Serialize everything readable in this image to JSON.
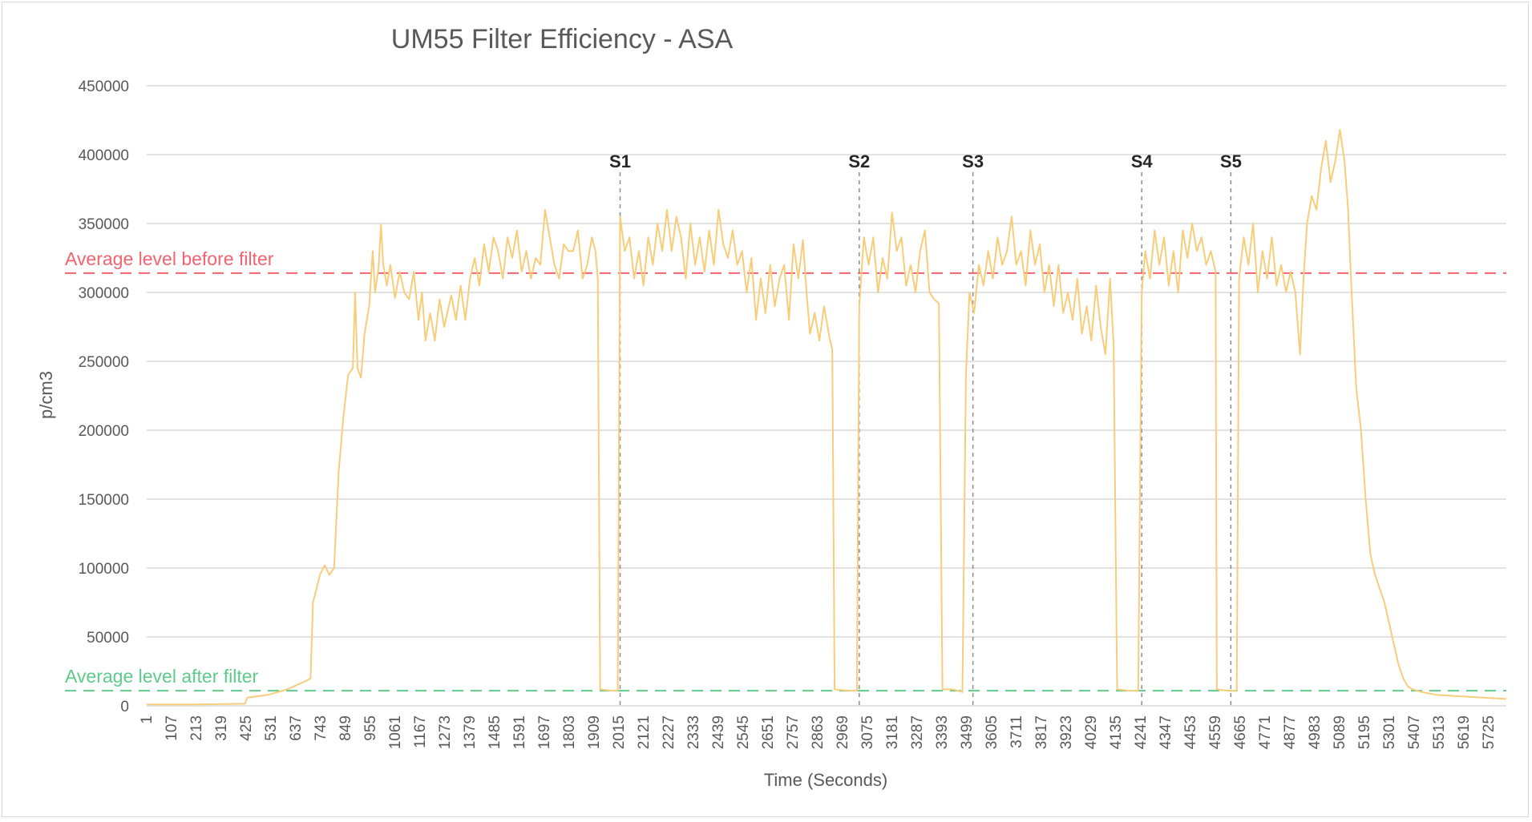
{
  "chart_data": {
    "type": "line",
    "title": "UM55 Filter Efficiency - ASA",
    "xlabel": "Time (Seconds)",
    "ylabel": "p/cm3",
    "ylim": [
      0,
      450000
    ],
    "xlim": [
      1,
      5800
    ],
    "grid": true,
    "y_ticks": [
      0,
      50000,
      100000,
      150000,
      200000,
      250000,
      300000,
      350000,
      400000,
      450000
    ],
    "y_tick_labels": [
      "0",
      "50000",
      "100000",
      "150000",
      "200000",
      "250000",
      "300000",
      "350000",
      "400000",
      "450000"
    ],
    "x_ticks": [
      1,
      107,
      213,
      319,
      425,
      531,
      637,
      743,
      849,
      955,
      1061,
      1167,
      1273,
      1379,
      1485,
      1591,
      1697,
      1803,
      1909,
      2015,
      2121,
      2227,
      2333,
      2439,
      2545,
      2651,
      2757,
      2863,
      2969,
      3075,
      3181,
      3287,
      3393,
      3499,
      3605,
      3711,
      3817,
      3923,
      4029,
      4135,
      4241,
      4347,
      4453,
      4559,
      4665,
      4771,
      4877,
      4983,
      5089,
      5195,
      5301,
      5407,
      5513,
      5619,
      5725
    ],
    "x_tick_labels": [
      "1",
      "107",
      "213",
      "319",
      "425",
      "531",
      "637",
      "743",
      "849",
      "955",
      "1061",
      "1167",
      "1273",
      "1379",
      "1485",
      "1591",
      "1697",
      "1803",
      "1909",
      "2015",
      "2121",
      "2227",
      "2333",
      "2439",
      "2545",
      "2651",
      "2757",
      "2863",
      "2969",
      "3075",
      "3181",
      "3287",
      "3393",
      "3499",
      "3605",
      "3711",
      "3817",
      "3923",
      "4029",
      "4135",
      "4241",
      "4347",
      "4453",
      "4559",
      "4665",
      "4771",
      "4877",
      "4983",
      "5089",
      "5195",
      "5301",
      "5407",
      "5513",
      "5619",
      "5725"
    ],
    "series": [
      {
        "color": "#f8cd7a",
        "points": [
          [
            1,
            1000
          ],
          [
            200,
            1000
          ],
          [
            420,
            1500
          ],
          [
            430,
            6000
          ],
          [
            520,
            8000
          ],
          [
            600,
            12000
          ],
          [
            680,
            18000
          ],
          [
            700,
            20000
          ],
          [
            710,
            75000
          ],
          [
            740,
            95000
          ],
          [
            760,
            102000
          ],
          [
            780,
            95000
          ],
          [
            800,
            100000
          ],
          [
            820,
            170000
          ],
          [
            840,
            210000
          ],
          [
            860,
            240000
          ],
          [
            880,
            245000
          ],
          [
            890,
            300000
          ],
          [
            900,
            245000
          ],
          [
            915,
            238000
          ],
          [
            930,
            270000
          ],
          [
            950,
            290000
          ],
          [
            965,
            330000
          ],
          [
            975,
            300000
          ],
          [
            990,
            318000
          ],
          [
            1000,
            349000
          ],
          [
            1010,
            320000
          ],
          [
            1025,
            305000
          ],
          [
            1040,
            320000
          ],
          [
            1060,
            296000
          ],
          [
            1080,
            315000
          ],
          [
            1100,
            300000
          ],
          [
            1120,
            295000
          ],
          [
            1140,
            315000
          ],
          [
            1160,
            280000
          ],
          [
            1175,
            300000
          ],
          [
            1190,
            265000
          ],
          [
            1210,
            285000
          ],
          [
            1230,
            265000
          ],
          [
            1250,
            295000
          ],
          [
            1270,
            275000
          ],
          [
            1300,
            298000
          ],
          [
            1320,
            280000
          ],
          [
            1340,
            305000
          ],
          [
            1360,
            280000
          ],
          [
            1380,
            310000
          ],
          [
            1400,
            325000
          ],
          [
            1420,
            305000
          ],
          [
            1440,
            335000
          ],
          [
            1460,
            315000
          ],
          [
            1480,
            340000
          ],
          [
            1500,
            330000
          ],
          [
            1520,
            310000
          ],
          [
            1540,
            340000
          ],
          [
            1560,
            325000
          ],
          [
            1580,
            345000
          ],
          [
            1600,
            315000
          ],
          [
            1620,
            330000
          ],
          [
            1640,
            310000
          ],
          [
            1660,
            325000
          ],
          [
            1680,
            320000
          ],
          [
            1700,
            360000
          ],
          [
            1720,
            340000
          ],
          [
            1740,
            320000
          ],
          [
            1760,
            310000
          ],
          [
            1780,
            335000
          ],
          [
            1800,
            330000
          ],
          [
            1820,
            330000
          ],
          [
            1840,
            345000
          ],
          [
            1860,
            310000
          ],
          [
            1880,
            320000
          ],
          [
            1900,
            340000
          ],
          [
            1915,
            330000
          ],
          [
            1925,
            310000
          ],
          [
            1935,
            12000
          ],
          [
            1980,
            11000
          ],
          [
            2010,
            11000
          ],
          [
            2020,
            355000
          ],
          [
            2040,
            330000
          ],
          [
            2060,
            340000
          ],
          [
            2080,
            310000
          ],
          [
            2100,
            330000
          ],
          [
            2120,
            305000
          ],
          [
            2140,
            340000
          ],
          [
            2160,
            320000
          ],
          [
            2180,
            350000
          ],
          [
            2200,
            330000
          ],
          [
            2220,
            360000
          ],
          [
            2240,
            330000
          ],
          [
            2260,
            355000
          ],
          [
            2280,
            340000
          ],
          [
            2300,
            310000
          ],
          [
            2320,
            350000
          ],
          [
            2340,
            320000
          ],
          [
            2360,
            340000
          ],
          [
            2380,
            315000
          ],
          [
            2400,
            345000
          ],
          [
            2420,
            320000
          ],
          [
            2440,
            360000
          ],
          [
            2460,
            335000
          ],
          [
            2480,
            325000
          ],
          [
            2500,
            345000
          ],
          [
            2520,
            320000
          ],
          [
            2540,
            330000
          ],
          [
            2560,
            300000
          ],
          [
            2580,
            325000
          ],
          [
            2600,
            280000
          ],
          [
            2620,
            310000
          ],
          [
            2640,
            285000
          ],
          [
            2660,
            320000
          ],
          [
            2680,
            290000
          ],
          [
            2700,
            310000
          ],
          [
            2720,
            320000
          ],
          [
            2740,
            280000
          ],
          [
            2760,
            335000
          ],
          [
            2780,
            310000
          ],
          [
            2800,
            338000
          ],
          [
            2815,
            300000
          ],
          [
            2830,
            270000
          ],
          [
            2850,
            285000
          ],
          [
            2870,
            265000
          ],
          [
            2890,
            290000
          ],
          [
            2910,
            270000
          ],
          [
            2925,
            258000
          ],
          [
            2935,
            12000
          ],
          [
            2990,
            11000
          ],
          [
            3030,
            11000
          ],
          [
            3040,
            290000
          ],
          [
            3060,
            340000
          ],
          [
            3080,
            320000
          ],
          [
            3100,
            340000
          ],
          [
            3120,
            300000
          ],
          [
            3140,
            325000
          ],
          [
            3160,
            310000
          ],
          [
            3180,
            358000
          ],
          [
            3200,
            330000
          ],
          [
            3220,
            340000
          ],
          [
            3240,
            305000
          ],
          [
            3260,
            320000
          ],
          [
            3280,
            300000
          ],
          [
            3300,
            330000
          ],
          [
            3320,
            345000
          ],
          [
            3340,
            300000
          ],
          [
            3360,
            295000
          ],
          [
            3380,
            292000
          ],
          [
            3395,
            12000
          ],
          [
            3440,
            12000
          ],
          [
            3480,
            10000
          ],
          [
            3495,
            240000
          ],
          [
            3510,
            300000
          ],
          [
            3530,
            285000
          ],
          [
            3550,
            320000
          ],
          [
            3570,
            305000
          ],
          [
            3590,
            330000
          ],
          [
            3610,
            310000
          ],
          [
            3630,
            340000
          ],
          [
            3650,
            320000
          ],
          [
            3670,
            330000
          ],
          [
            3690,
            355000
          ],
          [
            3710,
            320000
          ],
          [
            3730,
            330000
          ],
          [
            3750,
            305000
          ],
          [
            3770,
            345000
          ],
          [
            3790,
            320000
          ],
          [
            3810,
            335000
          ],
          [
            3830,
            300000
          ],
          [
            3850,
            320000
          ],
          [
            3870,
            290000
          ],
          [
            3890,
            320000
          ],
          [
            3910,
            285000
          ],
          [
            3930,
            300000
          ],
          [
            3950,
            280000
          ],
          [
            3970,
            310000
          ],
          [
            3990,
            270000
          ],
          [
            4010,
            290000
          ],
          [
            4030,
            265000
          ],
          [
            4050,
            305000
          ],
          [
            4070,
            275000
          ],
          [
            4090,
            255000
          ],
          [
            4110,
            310000
          ],
          [
            4125,
            262000
          ],
          [
            4140,
            12000
          ],
          [
            4190,
            11000
          ],
          [
            4230,
            11000
          ],
          [
            4245,
            300000
          ],
          [
            4260,
            330000
          ],
          [
            4280,
            310000
          ],
          [
            4300,
            345000
          ],
          [
            4320,
            320000
          ],
          [
            4340,
            340000
          ],
          [
            4360,
            305000
          ],
          [
            4380,
            330000
          ],
          [
            4400,
            300000
          ],
          [
            4420,
            345000
          ],
          [
            4440,
            325000
          ],
          [
            4460,
            350000
          ],
          [
            4480,
            330000
          ],
          [
            4500,
            340000
          ],
          [
            4520,
            320000
          ],
          [
            4540,
            330000
          ],
          [
            4560,
            315000
          ],
          [
            4565,
            12000
          ],
          [
            4610,
            11000
          ],
          [
            4650,
            11000
          ],
          [
            4660,
            310000
          ],
          [
            4680,
            340000
          ],
          [
            4700,
            320000
          ],
          [
            4720,
            350000
          ],
          [
            4740,
            300000
          ],
          [
            4760,
            330000
          ],
          [
            4780,
            310000
          ],
          [
            4800,
            340000
          ],
          [
            4820,
            305000
          ],
          [
            4840,
            320000
          ],
          [
            4860,
            300000
          ],
          [
            4880,
            315000
          ],
          [
            4900,
            300000
          ],
          [
            4920,
            255000
          ],
          [
            4935,
            310000
          ],
          [
            4950,
            350000
          ],
          [
            4970,
            370000
          ],
          [
            4990,
            360000
          ],
          [
            5010,
            390000
          ],
          [
            5030,
            410000
          ],
          [
            5050,
            380000
          ],
          [
            5070,
            395000
          ],
          [
            5090,
            418000
          ],
          [
            5110,
            395000
          ],
          [
            5125,
            360000
          ],
          [
            5140,
            300000
          ],
          [
            5160,
            230000
          ],
          [
            5180,
            200000
          ],
          [
            5200,
            150000
          ],
          [
            5220,
            110000
          ],
          [
            5240,
            95000
          ],
          [
            5260,
            85000
          ],
          [
            5280,
            75000
          ],
          [
            5300,
            60000
          ],
          [
            5320,
            45000
          ],
          [
            5340,
            30000
          ],
          [
            5360,
            20000
          ],
          [
            5380,
            14000
          ],
          [
            5400,
            12000
          ],
          [
            5440,
            10000
          ],
          [
            5500,
            8000
          ],
          [
            5600,
            7000
          ],
          [
            5700,
            6000
          ],
          [
            5800,
            5000
          ]
        ]
      }
    ],
    "reference_lines": [
      {
        "label": "Average level before filter",
        "value": 314000,
        "color": "#f4636f"
      },
      {
        "label": "Average level after filter",
        "value": 11000,
        "color": "#5ecb8a"
      }
    ],
    "markers": [
      {
        "label": "S1",
        "x": 2020
      },
      {
        "label": "S2",
        "x": 3040
      },
      {
        "label": "S3",
        "x": 3525
      },
      {
        "label": "S4",
        "x": 4245
      },
      {
        "label": "S5",
        "x": 4625
      }
    ]
  }
}
